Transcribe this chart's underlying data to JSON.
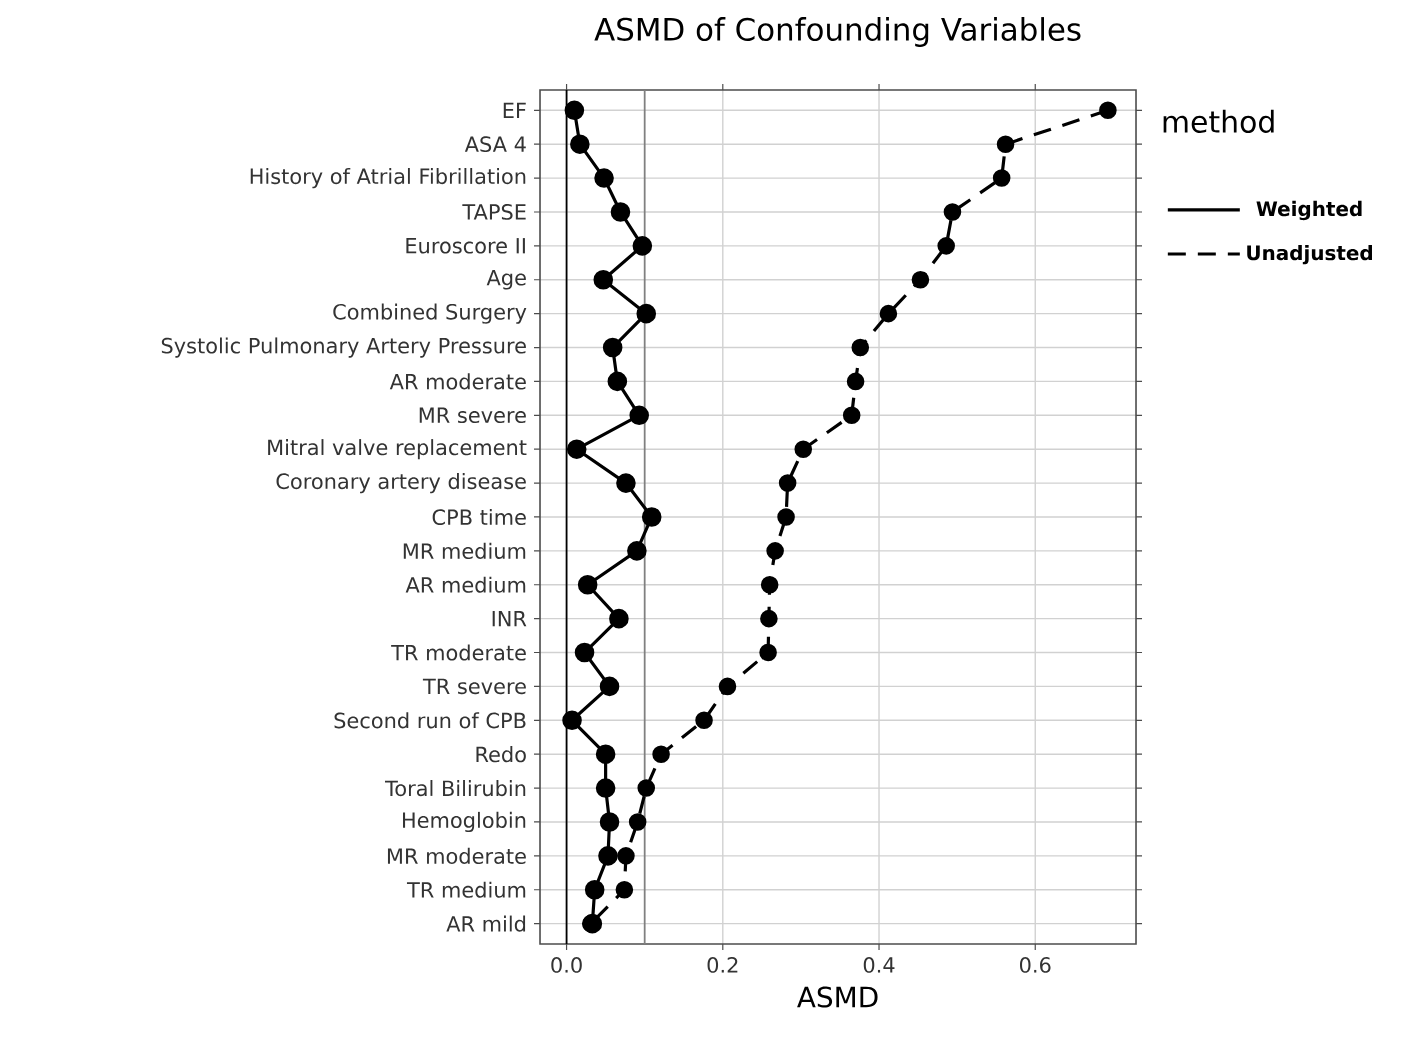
{
  "chart_data": {
    "type": "line",
    "orientation": "horizontal",
    "title": "ASMD  of Confounding Variables",
    "xlabel": "ASMD",
    "legend_title": "method",
    "categories": [
      "EF",
      "ASA 4",
      "History of Atrial Fibrillation",
      "TAPSE",
      "Euroscore II",
      "Age",
      "Combined Surgery",
      "Systolic Pulmonary Artery Pressure",
      "AR moderate",
      "MR severe",
      "Mitral valve replacement",
      "Coronary artery disease",
      "CPB time",
      "MR medium",
      "AR medium",
      "INR",
      "TR moderate",
      "TR severe",
      "Second run of CPB",
      "Redo",
      "Toral Bilirubin",
      "Hemoglobin",
      "MR moderate",
      "TR medium",
      "AR mild"
    ],
    "series": [
      {
        "name": "Weighted",
        "color": "#000000",
        "line_style": "solid",
        "values": [
          0.01,
          0.017,
          0.048,
          0.069,
          0.097,
          0.047,
          0.102,
          0.059,
          0.065,
          0.093,
          0.013,
          0.076,
          0.109,
          0.09,
          0.027,
          0.067,
          0.023,
          0.055,
          0.007,
          0.05,
          0.05,
          0.055,
          0.053,
          0.036,
          0.033
        ]
      },
      {
        "name": "Unadjusted",
        "color": "#000000",
        "line_style": "dashed",
        "values": [
          0.693,
          0.562,
          0.557,
          0.494,
          0.486,
          0.453,
          0.412,
          0.376,
          0.37,
          0.365,
          0.303,
          0.283,
          0.281,
          0.267,
          0.26,
          0.259,
          0.258,
          0.206,
          0.176,
          0.121,
          0.102,
          0.091,
          0.076,
          0.074,
          0.031
        ]
      }
    ],
    "xlim": [
      -0.034,
      0.729
    ],
    "xticks": [
      {
        "value": 0,
        "label": "0.0"
      },
      0.2,
      0.4,
      0.6
    ],
    "ref_lines": [
      {
        "axis": "x",
        "value": 0,
        "color": "#000000"
      },
      {
        "axis": "x",
        "value": 0.1,
        "color": "#808080"
      }
    ],
    "grid": true,
    "legend": "right",
    "marker": "circle"
  }
}
